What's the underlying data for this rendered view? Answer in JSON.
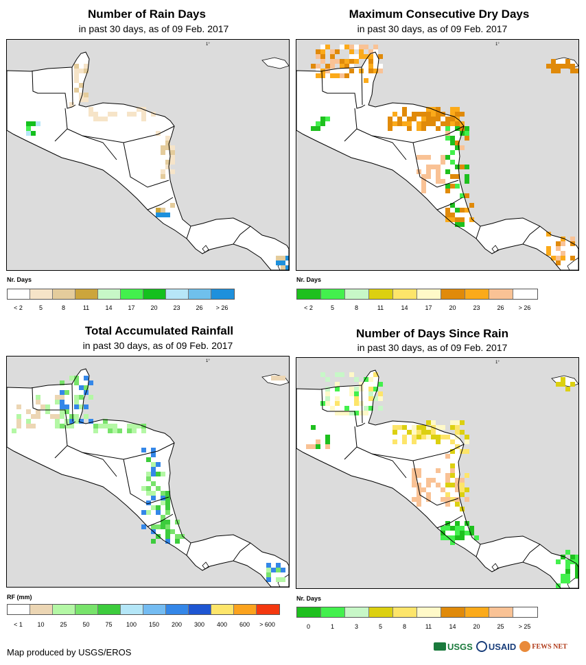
{
  "panels": [
    {
      "title": "Number of Rain Days",
      "subtitle": "in past 30 days, as of 09 Feb. 2017",
      "unit_label": "Nr. Days",
      "legend_colors": [
        "#ffffff",
        "#f6e4c8",
        "#e4cc9c",
        "#cca53c",
        "#c7f7c7",
        "#43f04d",
        "#14c01e",
        "#b7e6f7",
        "#6fc0ec",
        "#1e90dc"
      ],
      "legend_ticks": [
        "< 2",
        "5",
        "8",
        "11",
        "14",
        "17",
        "20",
        "23",
        "26",
        "> 26"
      ]
    },
    {
      "title": "Maximum Consecutive Dry Days",
      "subtitle": "in past 30 days, as of 09 Feb. 2017",
      "unit_label": "Nr. Days",
      "legend_colors": [
        "#1ec01e",
        "#43f04d",
        "#c7f7c7",
        "#dcd010",
        "#fde56a",
        "#fff9c8",
        "#e08a0a",
        "#fbaa1a",
        "#f9c295",
        "#ffffff"
      ],
      "legend_ticks": [
        "< 2",
        "5",
        "8",
        "11",
        "14",
        "17",
        "20",
        "23",
        "26",
        "> 26"
      ]
    },
    {
      "title": "Total Accumulated Rainfall",
      "subtitle": "in past 30 days, as of 09 Feb. 2017",
      "unit_label": "RF (mm)",
      "legend_colors": [
        "#ffffff",
        "#ecd6b4",
        "#b4f7a5",
        "#78e36b",
        "#3dcc3d",
        "#b4e6f7",
        "#74bcf2",
        "#3487e8",
        "#1e56d2",
        "#fde56a",
        "#fba31e",
        "#f4380f"
      ],
      "legend_ticks": [
        "< 1",
        "10",
        "25",
        "50",
        "75",
        "100",
        "150",
        "200",
        "300",
        "400",
        "600",
        "> 600"
      ]
    },
    {
      "title": "Number of Days Since Rain",
      "subtitle": "in past 30 days, as of 09 Feb. 2017",
      "unit_label": "Nr. Days",
      "legend_colors": [
        "#1ec01e",
        "#43f04d",
        "#c7f7c7",
        "#dcd010",
        "#fde56a",
        "#fff9c8",
        "#e08a0a",
        "#fbaa1a",
        "#f9c295",
        "#ffffff"
      ],
      "legend_ticks": [
        "0",
        "1",
        "3",
        "5",
        "8",
        "11",
        "14",
        "20",
        "25",
        "> 25"
      ]
    }
  ],
  "map_colors": {
    "ocean": "#dcdcdc",
    "land": "#ffffff",
    "border": "#000000"
  },
  "graticule_label": "1°",
  "footer": {
    "credit": "Map produced by USGS/EROS",
    "logos": [
      {
        "name": "USGS",
        "color": "#1a7a3c"
      },
      {
        "name": "USAID",
        "color": "#183d7a"
      },
      {
        "name": "FEWS NET",
        "color": "#b03b1a"
      }
    ]
  }
}
